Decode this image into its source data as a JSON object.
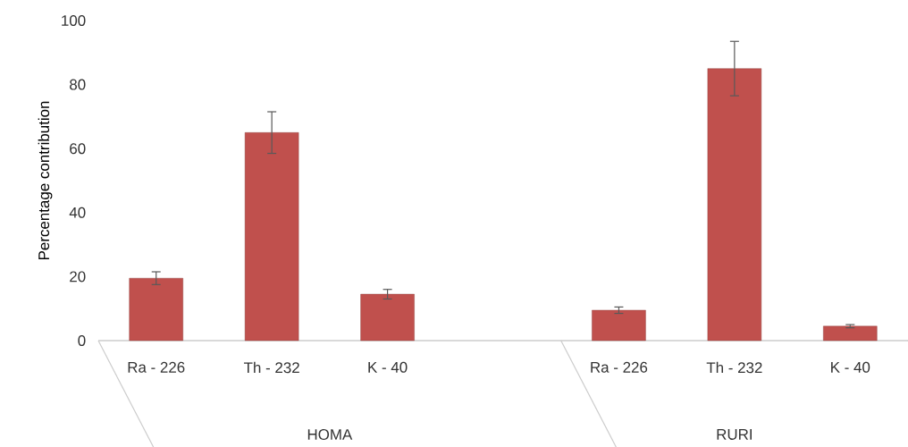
{
  "chart_data": {
    "type": "bar",
    "ylabel": "Percentage contribution",
    "categories": [
      "Ra - 226",
      "Th - 232",
      "K - 40",
      null,
      "Ra - 226",
      "Th - 232",
      "K - 40"
    ],
    "values": [
      19.5,
      65,
      14.5,
      null,
      9.5,
      85,
      4.5
    ],
    "errors": [
      2,
      6.5,
      1.5,
      null,
      1,
      8.5,
      0.5
    ],
    "color": "#c0504d",
    "ylim": [
      0,
      100
    ],
    "yticks": [
      0,
      20,
      40,
      60,
      80,
      100
    ],
    "annotations": [
      "HOMA",
      "RURI"
    ]
  }
}
